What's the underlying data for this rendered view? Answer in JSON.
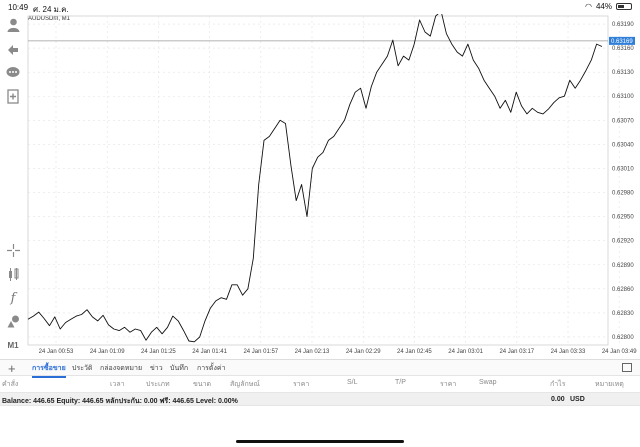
{
  "status_bar": {
    "time": "10:49",
    "date": "ศ. 24 ม.ค.",
    "battery": "44%",
    "battery_level": 0.44
  },
  "chart": {
    "symbol": "AUDUSDm, M1",
    "current_price": "0.63169",
    "price_ticks": [
      "0.63190",
      "0.63160",
      "0.63130",
      "0.63100",
      "0.63070",
      "0.63040",
      "0.63010",
      "0.62980",
      "0.62950",
      "0.62920",
      "0.62890",
      "0.62860",
      "0.62830",
      "0.62800"
    ],
    "time_ticks": [
      "24 Jan 00:53",
      "24 Jan 01:09",
      "24 Jan 01:25",
      "24 Jan 01:41",
      "24 Jan 01:57",
      "24 Jan 02:13",
      "24 Jan 02:29",
      "24 Jan 02:45",
      "24 Jan 03:01",
      "24 Jan 03:17",
      "24 Jan 03:33",
      "24 Jan 03:49"
    ]
  },
  "chart_data": {
    "type": "line",
    "title": "AUDUSDm, M1",
    "ylim": [
      0.6279,
      0.632
    ],
    "x_labels": [
      "24 Jan 00:53",
      "24 Jan 01:09",
      "24 Jan 01:25",
      "24 Jan 01:41",
      "24 Jan 01:57",
      "24 Jan 02:13",
      "24 Jan 02:29",
      "24 Jan 02:45",
      "24 Jan 03:01",
      "24 Jan 03:17",
      "24 Jan 03:33",
      "24 Jan 03:49"
    ],
    "current_price": 0.63169,
    "values": [
      0.62822,
      0.62826,
      0.62831,
      0.62823,
      0.62814,
      0.62825,
      0.6281,
      0.62818,
      0.62822,
      0.62826,
      0.62828,
      0.62834,
      0.62825,
      0.6282,
      0.62827,
      0.62815,
      0.6281,
      0.62808,
      0.62812,
      0.62806,
      0.6281,
      0.62808,
      0.62796,
      0.62806,
      0.62812,
      0.62804,
      0.62812,
      0.62826,
      0.6282,
      0.62808,
      0.62795,
      0.62794,
      0.628,
      0.6282,
      0.62836,
      0.62845,
      0.62849,
      0.62847,
      0.62865,
      0.62865,
      0.62852,
      0.6286,
      0.62898,
      0.6299,
      0.63045,
      0.6305,
      0.6306,
      0.6307,
      0.63066,
      0.63014,
      0.6297,
      0.6299,
      0.6295,
      0.6301,
      0.63024,
      0.6303,
      0.63045,
      0.6305,
      0.6306,
      0.6307,
      0.6309,
      0.63105,
      0.6311,
      0.63085,
      0.63112,
      0.6313,
      0.6314,
      0.6315,
      0.6317,
      0.63138,
      0.6315,
      0.63145,
      0.63165,
      0.63195,
      0.6318,
      0.63175,
      0.632,
      0.63206,
      0.63178,
      0.63165,
      0.63155,
      0.6315,
      0.63165,
      0.63145,
      0.63135,
      0.6312,
      0.6311,
      0.631,
      0.63085,
      0.63095,
      0.6308,
      0.63105,
      0.63088,
      0.63078,
      0.63085,
      0.6308,
      0.63078,
      0.63084,
      0.63092,
      0.63098,
      0.631,
      0.6312,
      0.6311,
      0.6312,
      0.63132,
      0.63145,
      0.63165,
      0.63162
    ]
  },
  "toolbar": {
    "icons": [
      "person-icon",
      "trade-icon",
      "chat-icon",
      "new-order-icon",
      "crosshair-icon",
      "indicators-icon",
      "function-icon",
      "objects-icon"
    ],
    "timeframe": "M1"
  },
  "tabs": [
    "การซื้อขาย",
    "ประวัติ",
    "กล่องจดหมาย",
    "ข่าว",
    "บันทึก",
    "การตั้งค่า"
  ],
  "columns": [
    "คำสั่ง",
    "เวลา",
    "ประเภท",
    "ขนาด",
    "สัญลักษณ์",
    "ราคา",
    "S/L",
    "T/P",
    "ราคา",
    "Swap",
    "กำไร",
    "หมายเหตุ"
  ],
  "balance": {
    "text": "Balance: 446.65 Equity: 446.65 หลักประกัน: 0.00 ฟรี: 446.65 Level: 0.00%",
    "profit": "0.00",
    "currency": "USD"
  }
}
